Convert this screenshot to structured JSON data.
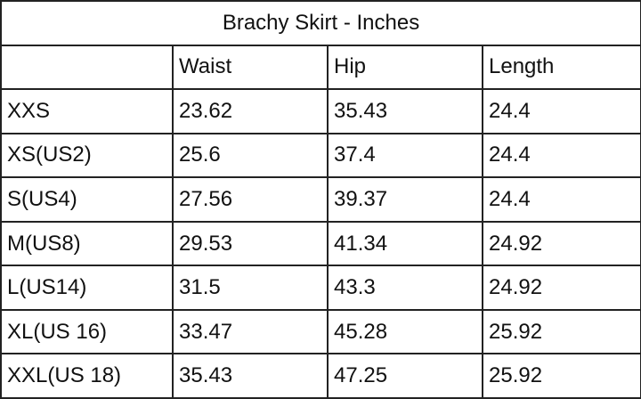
{
  "title": "Brachy Skirt - Inches",
  "columns": [
    "",
    "Waist",
    "Hip",
    "Length"
  ],
  "rows": [
    [
      "XXS",
      "23.62",
      "35.43",
      "24.4"
    ],
    [
      "XS(US2)",
      "25.6",
      "37.4",
      "24.4"
    ],
    [
      "S(US4)",
      "27.56",
      "39.37",
      "24.4"
    ],
    [
      "M(US8)",
      "29.53",
      "41.34",
      "24.92"
    ],
    [
      "L(US14)",
      "31.5",
      "43.3",
      "24.92"
    ],
    [
      "XL(US 16)",
      "33.47",
      "45.28",
      "25.92"
    ],
    [
      "XXL(US 18)",
      "35.43",
      "47.25",
      "25.92"
    ]
  ]
}
